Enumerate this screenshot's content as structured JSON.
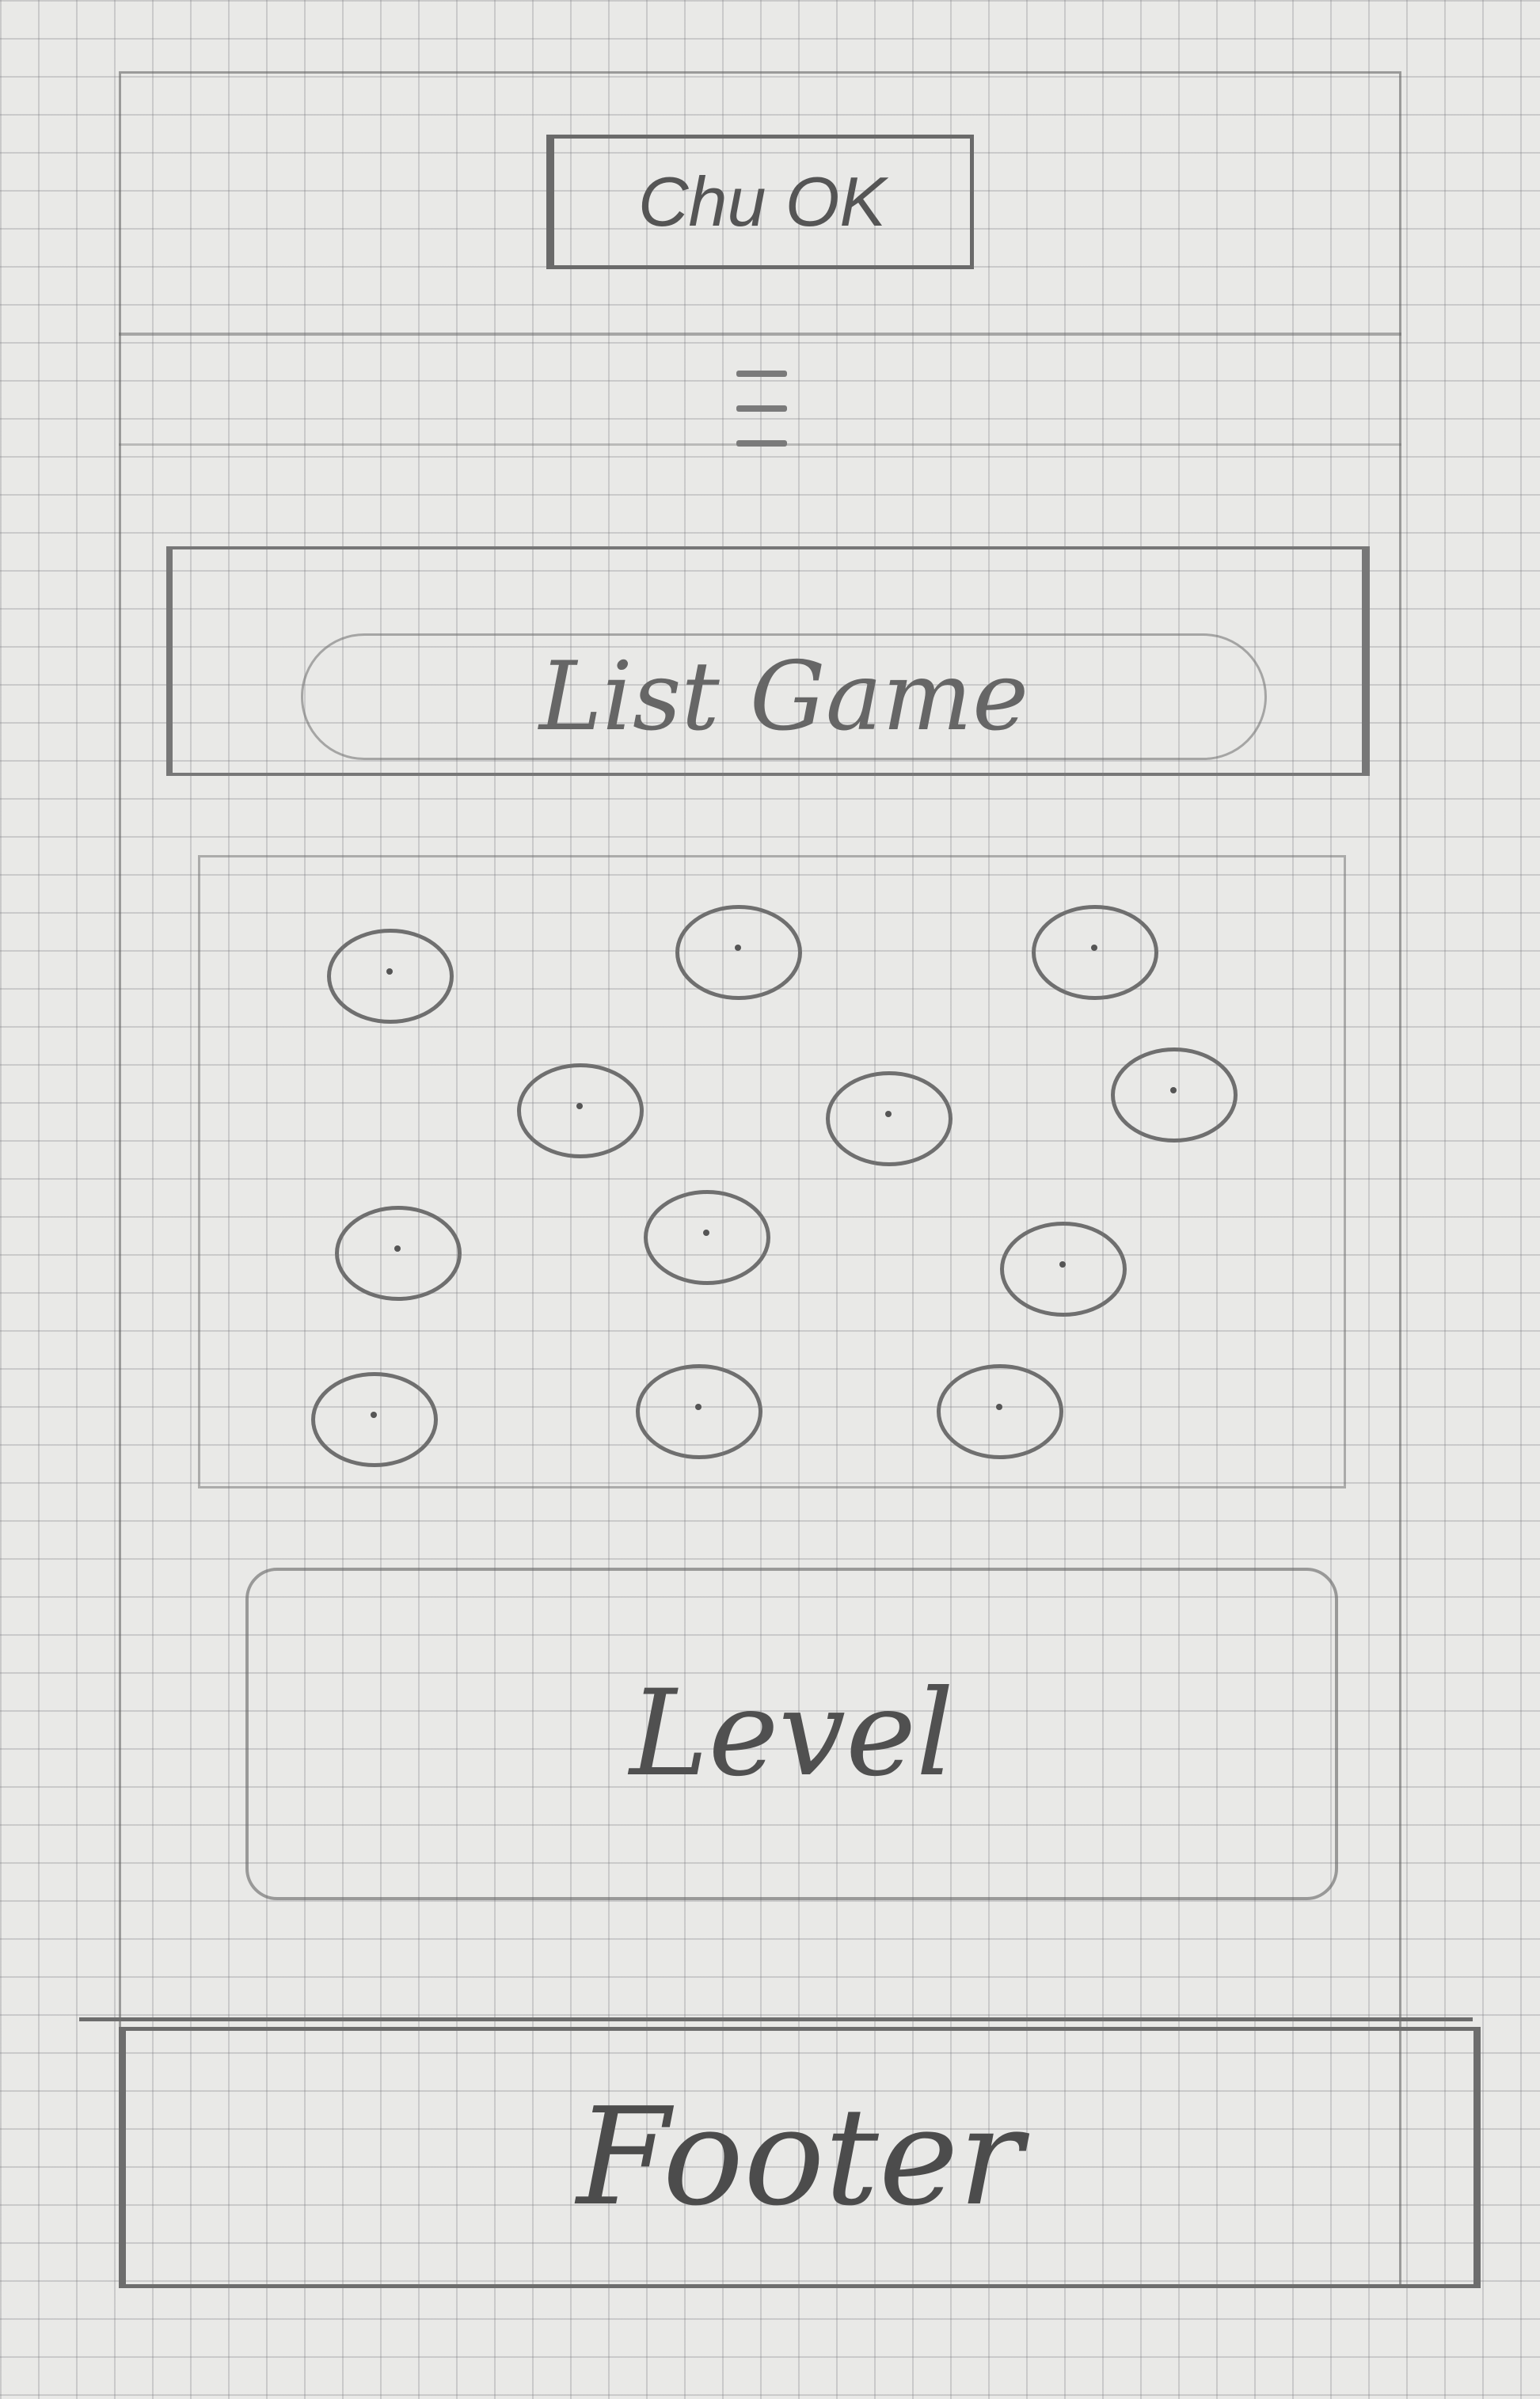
{
  "header": {
    "check_button_label": "Chu OK",
    "menu_icon": "hamburger-menu-icon"
  },
  "list_game": {
    "label": "List Game"
  },
  "game_grid": {
    "rows": 4,
    "columns": 3,
    "cells": [
      {
        "row": 1,
        "col": 1
      },
      {
        "row": 1,
        "col": 2
      },
      {
        "row": 1,
        "col": 3
      },
      {
        "row": 2,
        "col": 1
      },
      {
        "row": 2,
        "col": 2
      },
      {
        "row": 2,
        "col": 3
      },
      {
        "row": 3,
        "col": 1
      },
      {
        "row": 3,
        "col": 2
      },
      {
        "row": 3,
        "col": 3
      },
      {
        "row": 4,
        "col": 1
      },
      {
        "row": 4,
        "col": 2
      },
      {
        "row": 4,
        "col": 3
      }
    ]
  },
  "level": {
    "label": "Level"
  },
  "footer": {
    "label": "Footer"
  }
}
